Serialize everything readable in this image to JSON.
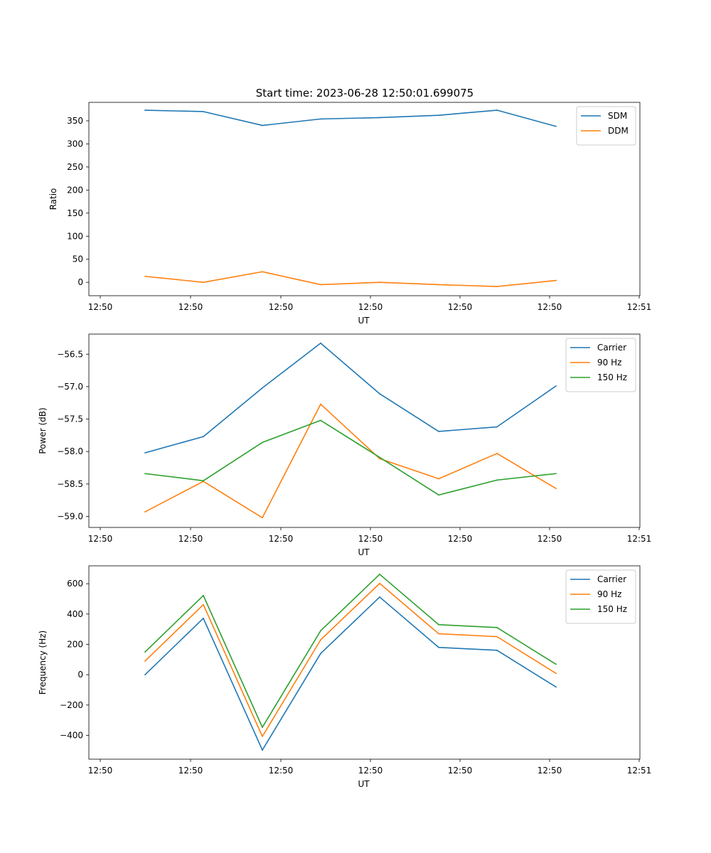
{
  "figure": {
    "title": "Start time: 2023-06-28 12:50:01.699075",
    "background": "#ffffff"
  },
  "colors": {
    "blue": "#1f77b4",
    "orange": "#ff7f0e",
    "green": "#2ca02c"
  },
  "chart_data": [
    {
      "type": "line",
      "title": "Start time: 2023-06-28 12:50:01.699075",
      "xlabel": "UT",
      "ylabel": "Ratio",
      "x_tick_labels": [
        "12:50",
        "12:50",
        "12:50",
        "12:50",
        "12:50",
        "12:50",
        "12:51"
      ],
      "y_ticks": [
        0,
        50,
        100,
        150,
        200,
        250,
        300,
        350
      ],
      "ylim": [
        -29,
        390
      ],
      "legend_position": "top-right",
      "series": [
        {
          "name": "SDM",
          "color": "#1f77b4",
          "values": [
            373,
            370,
            340,
            354,
            357,
            362,
            373,
            338
          ]
        },
        {
          "name": "DDM",
          "color": "#ff7f0e",
          "values": [
            13,
            0,
            23,
            -5,
            0,
            -5,
            -9,
            4
          ]
        }
      ]
    },
    {
      "type": "line",
      "title": "",
      "xlabel": "UT",
      "ylabel": "Power (dB)",
      "x_tick_labels": [
        "12:50",
        "12:50",
        "12:50",
        "12:50",
        "12:50",
        "12:50",
        "12:51"
      ],
      "y_ticks": [
        -59.0,
        -58.5,
        -58.0,
        -57.5,
        -57.0,
        -56.5
      ],
      "y_tick_labels": [
        "−59.0",
        "−58.5",
        "−58.0",
        "−57.5",
        "−57.0",
        "−56.5"
      ],
      "ylim": [
        -59.17,
        -56.19
      ],
      "legend_position": "top-right",
      "series": [
        {
          "name": "Carrier",
          "color": "#1f77b4",
          "values": [
            -58.02,
            -57.77,
            -57.02,
            -56.33,
            -57.11,
            -57.69,
            -57.62,
            -56.99
          ]
        },
        {
          "name": "90 Hz",
          "color": "#ff7f0e",
          "values": [
            -58.93,
            -58.46,
            -59.02,
            -57.27,
            -58.11,
            -58.42,
            -58.03,
            -58.57
          ]
        },
        {
          "name": "150 Hz",
          "color": "#2ca02c",
          "values": [
            -58.34,
            -58.45,
            -57.86,
            -57.52,
            -58.09,
            -58.67,
            -58.44,
            -58.34
          ]
        }
      ]
    },
    {
      "type": "line",
      "title": "",
      "xlabel": "UT",
      "ylabel": "Frequency (Hz)",
      "x_tick_labels": [
        "12:50",
        "12:50",
        "12:50",
        "12:50",
        "12:50",
        "12:50",
        "12:51"
      ],
      "y_ticks": [
        -400,
        -200,
        0,
        200,
        400,
        600
      ],
      "y_tick_labels": [
        "−400",
        "−200",
        "0",
        "200",
        "400",
        "600"
      ],
      "ylim": [
        -557,
        718
      ],
      "legend_position": "top-right",
      "series": [
        {
          "name": "Carrier",
          "color": "#1f77b4",
          "values": [
            0,
            372,
            -497,
            140,
            512,
            180,
            161,
            -81
          ]
        },
        {
          "name": "90 Hz",
          "color": "#ff7f0e",
          "values": [
            90,
            462,
            -407,
            230,
            602,
            270,
            251,
            9
          ]
        },
        {
          "name": "150 Hz",
          "color": "#2ca02c",
          "values": [
            150,
            522,
            -347,
            290,
            662,
            330,
            311,
            69
          ]
        }
      ]
    }
  ]
}
